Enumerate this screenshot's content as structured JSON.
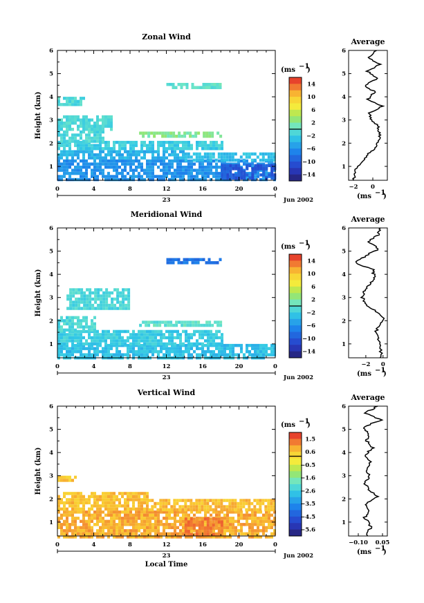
{
  "chart_data": [
    {
      "type": "heatmap",
      "title": "Zonal Wind",
      "ylabel": "Height (km)",
      "x_ticks": [
        "0",
        "4",
        "8",
        "12",
        "16",
        "20",
        "0"
      ],
      "date_label": "23",
      "month_label": "Jun 2002",
      "y_ticks": [
        "1",
        "2",
        "3",
        "4",
        "5",
        "6"
      ],
      "ylim": [
        0.4,
        6.0
      ],
      "colorbar": {
        "unit": "(ms",
        "unit_sup": "−1",
        "labels": [
          "14",
          "10",
          "6",
          "2",
          "−2",
          "−6",
          "−10",
          "−14"
        ],
        "range": [
          -16,
          16
        ]
      },
      "layers": [
        {
          "x": [
            0,
            24
          ],
          "y": [
            0.4,
            1.3
          ],
          "value": -6
        },
        {
          "x": [
            0,
            14
          ],
          "y": [
            1.3,
            1.7
          ],
          "value": -4
        },
        {
          "x": [
            14,
            24
          ],
          "y": [
            1.3,
            1.6
          ],
          "value": -3
        },
        {
          "x": [
            0,
            18
          ],
          "y": [
            1.7,
            2.1
          ],
          "value": -2
        },
        {
          "x": [
            0,
            5
          ],
          "y": [
            2.1,
            2.55
          ],
          "value": -1
        },
        {
          "x": [
            9,
            18
          ],
          "y": [
            2.3,
            2.5
          ],
          "value": 2
        },
        {
          "x": [
            0,
            6
          ],
          "y": [
            2.6,
            3.2
          ],
          "value": -1
        },
        {
          "x": [
            12,
            18
          ],
          "y": [
            4.4,
            4.6
          ],
          "value": 0
        },
        {
          "x": [
            0,
            3
          ],
          "y": [
            3.7,
            4.0
          ],
          "value": -1
        },
        {
          "x": [
            18,
            24
          ],
          "y": [
            0.5,
            1.1
          ],
          "value": -10
        }
      ],
      "profile": {
        "title": "Average",
        "xlabel": "(ms",
        "xlabel_sup": "−1",
        "x_ticks": [
          "−2",
          "0"
        ],
        "xlim": [
          -2.5,
          1.5
        ],
        "height": [
          0.4,
          0.8,
          1.2,
          1.5,
          1.8,
          2.1,
          2.4,
          2.7,
          3.0,
          3.3,
          3.6,
          3.9,
          4.2,
          4.5,
          4.8,
          5.1,
          5.4,
          5.7,
          6.0
        ],
        "value": [
          -2.0,
          -1.8,
          -1.2,
          -0.5,
          0.2,
          0.6,
          0.7,
          0.6,
          -0.2,
          -0.3,
          1.0,
          -0.5,
          0.2,
          -0.8,
          0.5,
          -0.6,
          0.8,
          -0.5,
          0.4
        ]
      }
    },
    {
      "type": "heatmap",
      "title": "Meridional Wind",
      "ylabel": "Height (km)",
      "x_ticks": [
        "0",
        "4",
        "8",
        "12",
        "16",
        "20",
        "0"
      ],
      "date_label": "23",
      "month_label": "Jun 2002",
      "y_ticks": [
        "1",
        "2",
        "3",
        "4",
        "5",
        "6"
      ],
      "ylim": [
        0.4,
        6.0
      ],
      "colorbar": {
        "unit": "(ms",
        "unit_sup": "−1",
        "labels": [
          "14",
          "10",
          "6",
          "2",
          "−2",
          "−6",
          "−10",
          "−14"
        ],
        "range": [
          -16,
          16
        ]
      },
      "layers": [
        {
          "x": [
            0,
            24
          ],
          "y": [
            0.4,
            1.0
          ],
          "value": -3
        },
        {
          "x": [
            0,
            18
          ],
          "y": [
            1.0,
            1.6
          ],
          "value": -2
        },
        {
          "x": [
            0,
            4
          ],
          "y": [
            1.6,
            2.2
          ],
          "value": -1
        },
        {
          "x": [
            9,
            18
          ],
          "y": [
            1.8,
            2.0
          ],
          "value": 0
        },
        {
          "x": [
            1,
            8
          ],
          "y": [
            2.5,
            3.4
          ],
          "value": -1
        },
        {
          "x": [
            12,
            18
          ],
          "y": [
            4.5,
            4.7
          ],
          "value": -8
        }
      ],
      "profile": {
        "title": "Average",
        "xlabel": "(ms",
        "xlabel_sup": "−1",
        "x_ticks": [
          "−2",
          "0"
        ],
        "xlim": [
          -4.0,
          0.5
        ],
        "height": [
          0.4,
          0.8,
          1.2,
          1.5,
          1.8,
          2.1,
          2.4,
          2.7,
          3.0,
          3.3,
          3.6,
          3.9,
          4.2,
          4.5,
          4.8,
          5.1,
          5.4,
          5.7,
          6.0
        ],
        "value": [
          -0.2,
          -0.3,
          -0.6,
          -0.9,
          -0.4,
          0.2,
          -0.8,
          -2.0,
          -2.4,
          -2.1,
          -1.5,
          -1.0,
          -1.2,
          -3.2,
          -2.0,
          -0.5,
          -1.8,
          -0.6,
          -0.3
        ]
      }
    },
    {
      "type": "heatmap",
      "title": "Vertical Wind",
      "ylabel": "Height (km)",
      "xlabel": "Local Time",
      "x_ticks": [
        "0",
        "4",
        "8",
        "12",
        "16",
        "20",
        "0"
      ],
      "date_label": "23",
      "month_label": "Jun 2002",
      "y_ticks": [
        "1",
        "2",
        "3",
        "4",
        "5",
        "6"
      ],
      "ylim": [
        0.4,
        6.0
      ],
      "colorbar": {
        "unit": "(ms",
        "unit_sup": "−1",
        "labels": [
          "1.5",
          "0.6",
          "−0.5",
          "−1.6",
          "−2.6",
          "−3.5",
          "−4.5",
          "−5.6"
        ],
        "range": [
          -6.0,
          2.0
        ]
      },
      "layers": [
        {
          "x": [
            0,
            24
          ],
          "y": [
            0.4,
            1.5
          ],
          "value": 0.8
        },
        {
          "x": [
            0,
            10
          ],
          "y": [
            1.5,
            2.3
          ],
          "value": 0.6
        },
        {
          "x": [
            10,
            24
          ],
          "y": [
            1.5,
            2.0
          ],
          "value": 0.6
        },
        {
          "x": [
            0,
            2
          ],
          "y": [
            2.8,
            3.0
          ],
          "value": 0.5
        },
        {
          "x": [
            14,
            18
          ],
          "y": [
            0.5,
            1.2
          ],
          "value": 1.2
        }
      ],
      "profile": {
        "title": "Average",
        "xlabel": "(ms",
        "xlabel_sup": "−1",
        "x_ticks": [
          "−0.10",
          "0.05"
        ],
        "xlim": [
          -0.16,
          0.08
        ],
        "height": [
          0.4,
          0.8,
          1.2,
          1.5,
          1.8,
          2.1,
          2.4,
          2.7,
          3.0,
          3.3,
          3.6,
          3.9,
          4.2,
          4.5,
          4.8,
          5.1,
          5.4,
          5.7,
          6.0
        ],
        "value": [
          -0.05,
          -0.02,
          -0.06,
          -0.03,
          -0.05,
          0.02,
          -0.04,
          -0.06,
          -0.03,
          -0.05,
          -0.02,
          -0.06,
          -0.01,
          -0.05,
          -0.03,
          -0.07,
          0.04,
          -0.06,
          0.02
        ]
      }
    }
  ]
}
